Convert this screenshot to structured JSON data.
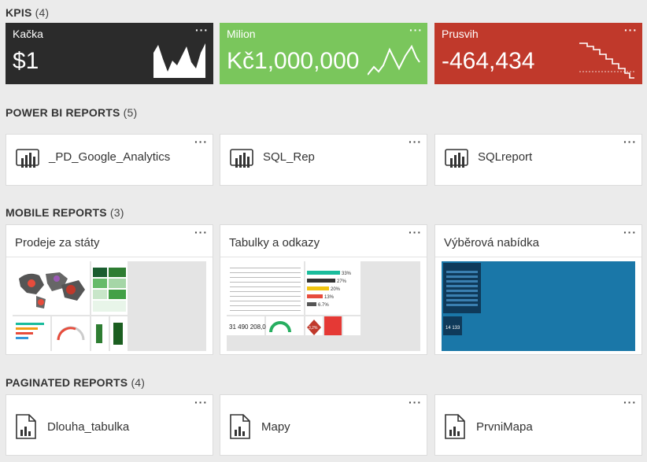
{
  "kpis": {
    "title": "KPIS",
    "count": "(4)",
    "items": [
      {
        "name": "Kačka",
        "value": "$1",
        "color": "#2b2b2b",
        "chart": "area"
      },
      {
        "name": "Milion",
        "value": "Kč1,000,000",
        "color": "#7ac65c",
        "chart": "line"
      },
      {
        "name": "Prusvih",
        "value": "-464,434",
        "color": "#c0392b",
        "chart": "step"
      }
    ]
  },
  "powerbi": {
    "title": "POWER BI REPORTS",
    "count": "(5)",
    "items": [
      {
        "name": "_PD_Google_Analytics"
      },
      {
        "name": "SQL_Rep"
      },
      {
        "name": "SQLreport"
      }
    ]
  },
  "mobile": {
    "title": "MOBILE REPORTS",
    "count": "(3)",
    "items": [
      {
        "name": "Prodeje za státy"
      },
      {
        "name": "Tabulky a odkazy"
      },
      {
        "name": "Výběrová nabídka"
      }
    ],
    "thumb2": {
      "big_number": "31 490 208,00",
      "percents": [
        "33%",
        "27%",
        "20%",
        "13%",
        "6.7%"
      ],
      "badge": "3,2%"
    },
    "thumb3": {
      "number": "14 133"
    }
  },
  "paginated": {
    "title": "PAGINATED REPORTS",
    "count": "(4)",
    "items": [
      {
        "name": "Dlouha_tabulka"
      },
      {
        "name": "Mapy"
      },
      {
        "name": "PrvniMapa"
      }
    ]
  },
  "more_label": "···"
}
